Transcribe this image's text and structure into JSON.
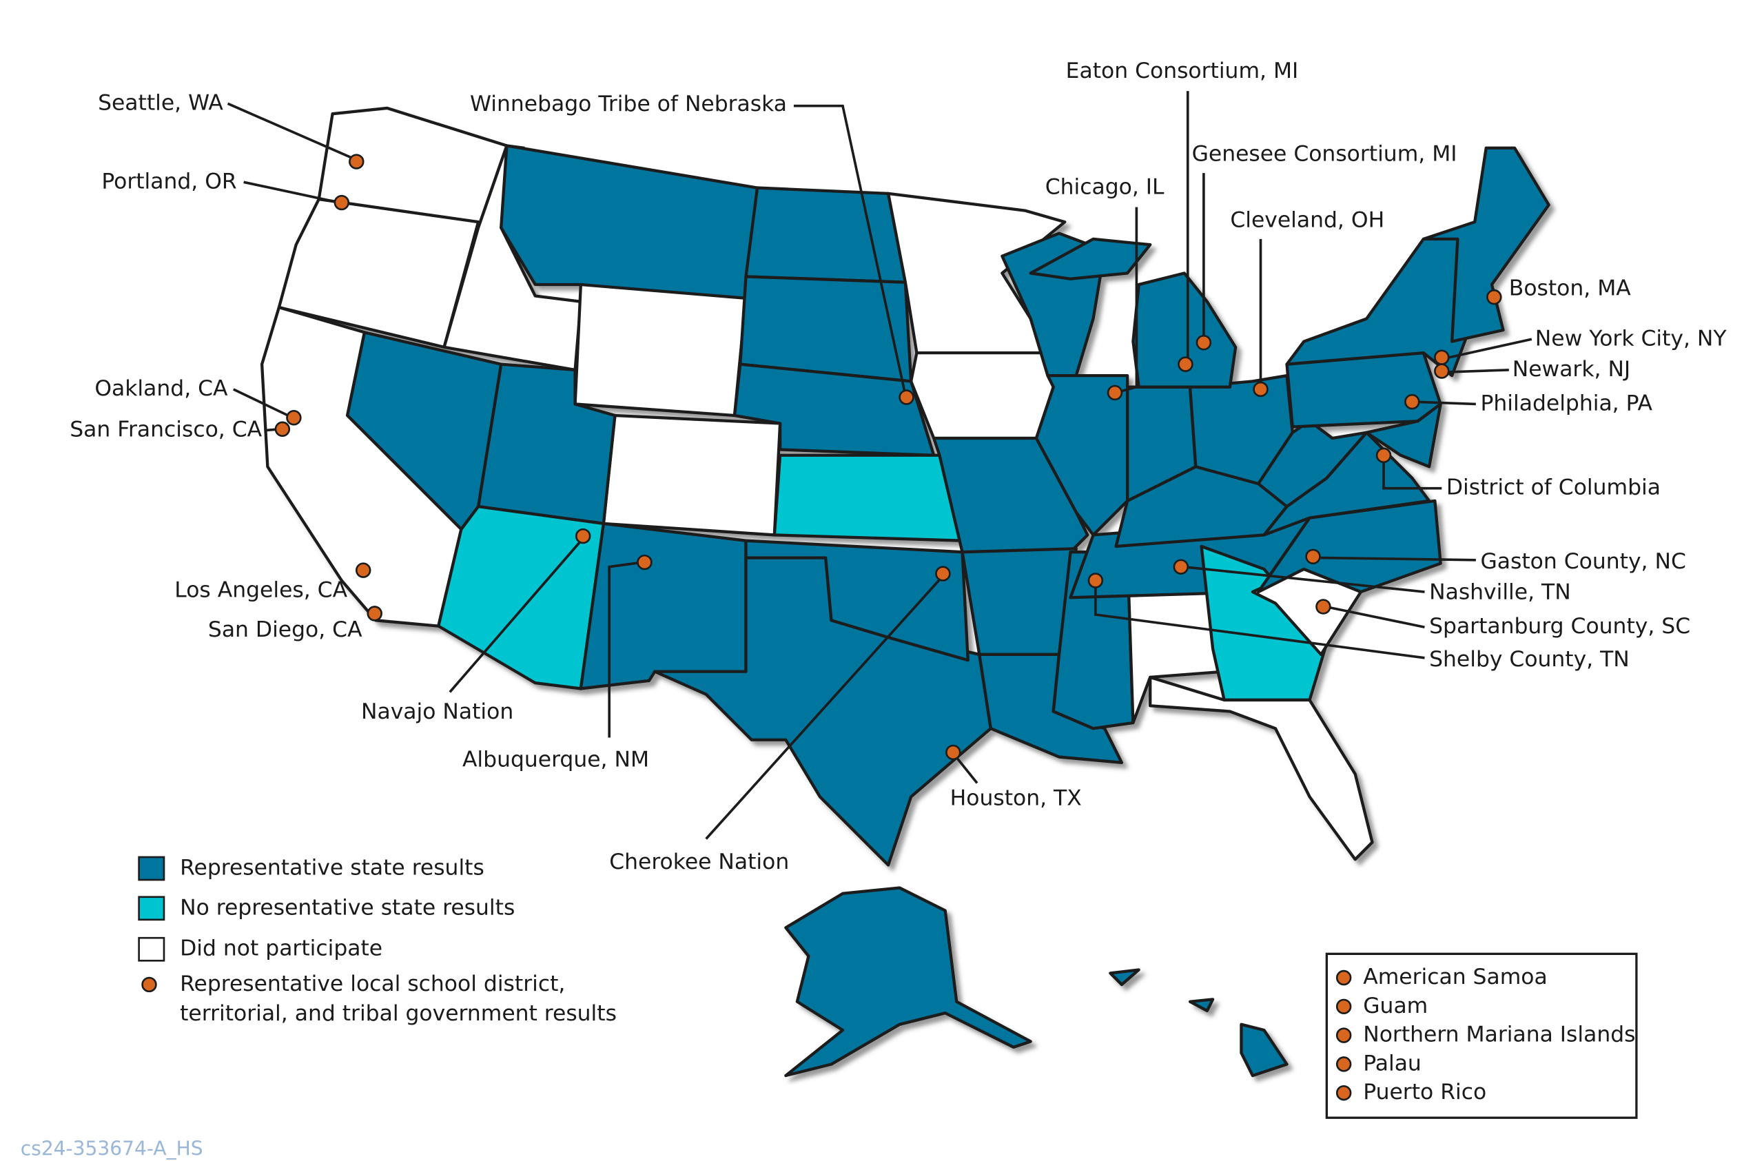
{
  "locations": [
    "Seattle, WA",
    "Portland, OR",
    "Oakland, CA",
    "San Francisco, CA",
    "Los Angeles, CA",
    "San Diego, CA",
    "Winnebago Tribe of Nebraska",
    "Eaton Consortium, MI",
    "Genesee Consortium, MI",
    "Chicago, IL",
    "Cleveland, OH",
    "Boston, MA",
    "New York City, NY",
    "Newark, NJ",
    "Philadelphia, PA",
    "District of Columbia",
    "Gaston County, NC",
    "Nashville, TN",
    "Spartanburg County, SC",
    "Shelby County, TN",
    "Houston, TX",
    "Navajo Nation",
    "Albuquerque, NM",
    "Cherokee Nation"
  ],
  "legend": {
    "items": [
      "Representative state results",
      "No representative state results",
      "Did not participate"
    ],
    "dot_item": [
      "Representative local school district,",
      "territorial, and tribal government results"
    ]
  },
  "territories": [
    "American Samoa",
    "Guam",
    "Northern Mariana Islands",
    "Palau",
    "Puerto Rico"
  ],
  "footer": "cs24-353674-A_HS"
}
